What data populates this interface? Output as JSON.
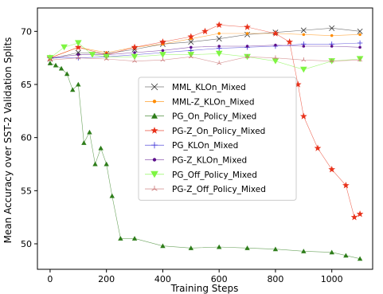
{
  "chart_data": {
    "type": "line",
    "xlabel": "Training Steps",
    "ylabel": "Mean Accuracy over SST-2 Validation Splits",
    "xlim": [
      -45,
      1145
    ],
    "ylim": [
      47.6,
      72.2
    ],
    "xticks": [
      0,
      200,
      400,
      600,
      800,
      1000
    ],
    "yticks": [
      50,
      55,
      60,
      65,
      70
    ],
    "grid": false,
    "legend_position": "center",
    "series": [
      {
        "name": "MML_KLOn_Mixed",
        "color": "#333333",
        "marker": "x",
        "x": [
          0,
          100,
          200,
          300,
          400,
          500,
          600,
          700,
          800,
          900,
          1000,
          1100
        ],
        "y": [
          67.4,
          68.0,
          67.9,
          68.3,
          68.8,
          69.0,
          69.3,
          69.7,
          69.9,
          70.1,
          70.3,
          70.0
        ]
      },
      {
        "name": "MML-Z_KLOn_Mixed",
        "color": "#ff8c00",
        "marker": "dot",
        "x": [
          0,
          100,
          200,
          300,
          400,
          500,
          600,
          700,
          800,
          900,
          1000,
          1100
        ],
        "y": [
          67.5,
          68.5,
          68.0,
          68.5,
          68.8,
          69.3,
          69.8,
          69.8,
          69.8,
          69.7,
          69.6,
          69.7
        ]
      },
      {
        "name": "PG_On_Policy_Mixed",
        "color": "#2e7d1a",
        "marker": "triangle",
        "x": [
          0,
          20,
          40,
          60,
          80,
          100,
          120,
          140,
          160,
          180,
          200,
          220,
          250,
          300,
          400,
          500,
          600,
          700,
          800,
          900,
          1000,
          1050,
          1100
        ],
        "y": [
          67.0,
          66.8,
          66.5,
          66.0,
          64.5,
          65.0,
          59.5,
          60.5,
          57.5,
          59.0,
          57.5,
          54.5,
          50.5,
          50.5,
          49.8,
          49.6,
          49.7,
          49.6,
          49.5,
          49.3,
          49.2,
          48.9,
          48.6
        ]
      },
      {
        "name": "PG-Z_On_Policy_Mixed",
        "color": "#e8311a",
        "marker": "star",
        "x": [
          0,
          100,
          200,
          300,
          400,
          500,
          550,
          600,
          700,
          800,
          850,
          880,
          900,
          950,
          1000,
          1050,
          1080,
          1100
        ],
        "y": [
          67.5,
          68.5,
          67.8,
          68.5,
          69.0,
          69.5,
          70.0,
          70.6,
          70.4,
          69.8,
          69.0,
          65.0,
          62.0,
          59.0,
          57.0,
          55.5,
          52.5,
          52.8
        ]
      },
      {
        "name": "PG_KLOn_Mixed",
        "color": "#3b2fd6",
        "marker": "plus",
        "x": [
          0,
          100,
          200,
          300,
          400,
          500,
          600,
          700,
          800,
          900,
          1000,
          1100
        ],
        "y": [
          67.5,
          67.5,
          67.6,
          67.8,
          68.0,
          68.2,
          68.4,
          68.5,
          68.6,
          68.8,
          68.8,
          68.9
        ]
      },
      {
        "name": "PG-Z_KLOn_Mixed",
        "color": "#5c0f8b",
        "marker": "dot",
        "x": [
          0,
          100,
          200,
          300,
          400,
          500,
          600,
          700,
          800,
          900,
          1000,
          1100
        ],
        "y": [
          67.5,
          67.8,
          67.8,
          68.0,
          68.2,
          68.5,
          68.6,
          68.6,
          68.7,
          68.6,
          68.6,
          68.5
        ]
      },
      {
        "name": "PG_Off_Policy_Mixed",
        "color": "#7ef542",
        "marker": "triangle-down",
        "x": [
          0,
          50,
          100,
          150,
          200,
          300,
          400,
          500,
          600,
          700,
          800,
          900,
          1000,
          1100
        ],
        "y": [
          67.5,
          68.5,
          68.9,
          67.8,
          67.6,
          67.6,
          67.8,
          67.8,
          67.9,
          67.6,
          67.2,
          66.4,
          67.2,
          67.4
        ]
      },
      {
        "name": "PG-Z_Off_Policy_Mixed",
        "color": "#c87070",
        "marker": "tri",
        "x": [
          0,
          100,
          200,
          300,
          400,
          500,
          600,
          700,
          800,
          900,
          1000,
          1100
        ],
        "y": [
          67.3,
          67.5,
          67.4,
          67.2,
          67.3,
          67.6,
          67.0,
          67.6,
          67.5,
          67.3,
          67.2,
          67.3
        ]
      }
    ]
  }
}
